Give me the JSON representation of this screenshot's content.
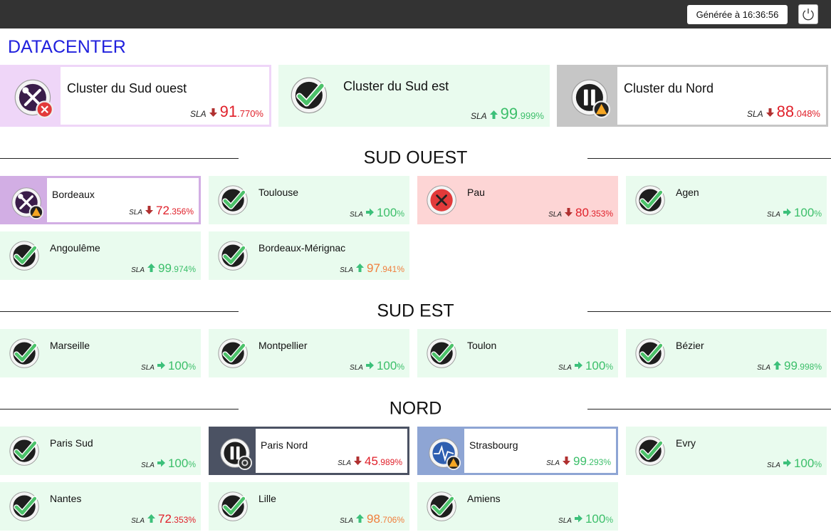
{
  "header": {
    "generated": "Générée à 16:36:56"
  },
  "title": "DATACENTER",
  "sla_label": "SLA",
  "clusters": [
    {
      "name": "Cluster du Sud ouest",
      "status": "maintenance",
      "badge": "critical",
      "trend": "down",
      "sla": "91.770%",
      "level": "bad"
    },
    {
      "name": "Cluster du Sud est",
      "status": "ok",
      "trend": "up",
      "sla": "99.999%",
      "level": "good"
    },
    {
      "name": "Cluster du Nord",
      "status": "paused",
      "badge": "warning",
      "trend": "down",
      "sla": "88.048%",
      "level": "bad"
    }
  ],
  "sections": [
    {
      "title": "SUD OUEST",
      "sites": [
        {
          "name": "Bordeaux",
          "status": "maintenance",
          "badge": "warning",
          "trend": "down",
          "sla": "72.356%",
          "level": "bad"
        },
        {
          "name": "Toulouse",
          "status": "ok",
          "trend": "right",
          "sla": "100%",
          "level": "good"
        },
        {
          "name": "Pau",
          "status": "critical",
          "trend": "down",
          "sla": "80.353%",
          "level": "bad"
        },
        {
          "name": "Agen",
          "status": "ok",
          "trend": "right",
          "sla": "100%",
          "level": "good"
        },
        {
          "name": "Angoulême",
          "status": "ok",
          "trend": "up",
          "sla": "99.974%",
          "level": "good"
        },
        {
          "name": "Bordeaux-Mérignac",
          "status": "ok",
          "trend": "up",
          "sla": "97.941%",
          "level": "warn"
        }
      ]
    },
    {
      "title": "SUD EST",
      "sites": [
        {
          "name": "Marseille",
          "status": "ok",
          "trend": "right",
          "sla": "100%",
          "level": "good"
        },
        {
          "name": "Montpellier",
          "status": "ok",
          "trend": "right",
          "sla": "100%",
          "level": "good"
        },
        {
          "name": "Toulon",
          "status": "ok",
          "trend": "right",
          "sla": "100%",
          "level": "good"
        },
        {
          "name": "Bézier",
          "status": "ok",
          "trend": "up",
          "sla": "99.998%",
          "level": "good"
        }
      ]
    },
    {
      "title": "NORD",
      "sites": [
        {
          "name": "Paris Sud",
          "status": "ok",
          "trend": "right",
          "sla": "100%",
          "level": "good"
        },
        {
          "name": "Paris Nord",
          "status": "paused",
          "badge": "unknown",
          "trend": "down",
          "sla": "45.989%",
          "level": "bad"
        },
        {
          "name": "Strasbourg",
          "status": "flapping",
          "badge": "warning",
          "trend": "down",
          "sla": "99.293%",
          "level": "good"
        },
        {
          "name": "Evry",
          "status": "ok",
          "trend": "right",
          "sla": "100%",
          "level": "good"
        },
        {
          "name": "Nantes",
          "status": "ok",
          "trend": "up",
          "sla": "72.353%",
          "level": "bad"
        },
        {
          "name": "Lille",
          "status": "ok",
          "trend": "up",
          "sla": "98.706%",
          "level": "warn"
        },
        {
          "name": "Amiens",
          "status": "ok",
          "trend": "right",
          "sla": "100%",
          "level": "good"
        }
      ]
    }
  ]
}
